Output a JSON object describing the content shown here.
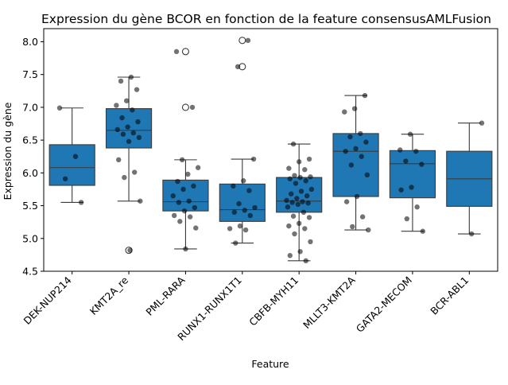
{
  "chart_data": {
    "type": "box",
    "title": "Expression du gène BCOR en fonction de la feature consensusAMLFusion",
    "xlabel": "Feature",
    "ylabel": "Expression du gène",
    "ylim": [
      4.5,
      8.2
    ],
    "yticks": [
      "4.5",
      "5.0",
      "5.5",
      "6.0",
      "6.5",
      "7.0",
      "7.5",
      "8.0"
    ],
    "grid": false,
    "colors": {
      "box": "#1f77b4",
      "edge": "#3b3b3b",
      "point": "#000000"
    },
    "categories": [
      "DEK-NUP214",
      "KMT2A_re",
      "PML-RARA",
      "RUNX1-RUNX1T1",
      "CBFB-MYH11",
      "MLLT3-KMT2A",
      "GATA2-MECOM",
      "BCR-ABL1"
    ],
    "boxes": [
      {
        "category": "DEK-NUP214",
        "whislo": 5.55,
        "q1": 5.81,
        "med": 6.08,
        "q3": 6.43,
        "whishi": 6.99,
        "fliers": []
      },
      {
        "category": "KMT2A_re",
        "whislo": 5.57,
        "q1": 6.38,
        "med": 6.65,
        "q3": 6.98,
        "whishi": 7.46,
        "fliers": [
          4.82
        ]
      },
      {
        "category": "PML-RARA",
        "whislo": 4.84,
        "q1": 5.42,
        "med": 5.56,
        "q3": 5.89,
        "whishi": 6.2,
        "fliers": [
          7.0,
          7.85
        ]
      },
      {
        "category": "RUNX1-RUNX1T1",
        "whislo": 4.93,
        "q1": 5.26,
        "med": 5.44,
        "q3": 5.83,
        "whishi": 6.21,
        "fliers": [
          7.62,
          8.02
        ]
      },
      {
        "category": "CBFB-MYH11",
        "whislo": 4.66,
        "q1": 5.4,
        "med": 5.57,
        "q3": 5.93,
        "whishi": 6.44,
        "fliers": []
      },
      {
        "category": "MLLT3-KMT2A",
        "whislo": 5.13,
        "q1": 5.64,
        "med": 6.33,
        "q3": 6.6,
        "whishi": 7.18,
        "fliers": []
      },
      {
        "category": "GATA2-MECOM",
        "whislo": 5.11,
        "q1": 5.62,
        "med": 6.14,
        "q3": 6.34,
        "whishi": 6.59,
        "fliers": []
      },
      {
        "category": "BCR-ABL1",
        "whislo": 5.07,
        "q1": 5.49,
        "med": 5.91,
        "q3": 6.33,
        "whishi": 6.76,
        "fliers": []
      }
    ],
    "points": [
      {
        "category": "DEK-NUP214",
        "values": [
          6.99,
          6.25,
          5.91,
          5.55
        ]
      },
      {
        "category": "KMT2A_re",
        "values": [
          7.46,
          7.4,
          7.27,
          7.1,
          7.03,
          6.96,
          6.84,
          6.78,
          6.7,
          6.66,
          6.61,
          6.59,
          6.54,
          6.48,
          6.2,
          6.01,
          5.93,
          5.57,
          4.82
        ]
      },
      {
        "category": "PML-RARA",
        "values": [
          7.85,
          7.0,
          6.2,
          6.08,
          5.98,
          5.87,
          5.8,
          5.75,
          5.65,
          5.57,
          5.55,
          5.47,
          5.42,
          5.35,
          5.33,
          5.26,
          5.16,
          4.84
        ]
      },
      {
        "category": "RUNX1-RUNX1T1",
        "values": [
          8.02,
          7.62,
          6.21,
          5.88,
          5.8,
          5.73,
          5.53,
          5.47,
          5.43,
          5.4,
          5.35,
          5.19,
          5.15,
          5.13,
          4.93
        ]
      },
      {
        "category": "CBFB-MYH11",
        "values": [
          6.44,
          6.21,
          6.17,
          6.07,
          6.05,
          5.96,
          5.94,
          5.93,
          5.91,
          5.88,
          5.84,
          5.75,
          5.72,
          5.68,
          5.65,
          5.61,
          5.58,
          5.56,
          5.55,
          5.54,
          5.52,
          5.48,
          5.4,
          5.34,
          5.32,
          5.23,
          5.19,
          5.15,
          5.07,
          4.95,
          4.8,
          4.74,
          4.66
        ]
      },
      {
        "category": "MLLT3-KMT2A",
        "values": [
          7.18,
          6.98,
          6.93,
          6.6,
          6.55,
          6.47,
          6.37,
          6.33,
          6.25,
          6.12,
          5.97,
          5.64,
          5.56,
          5.33,
          5.18,
          5.13
        ]
      },
      {
        "category": "GATA2-MECOM",
        "values": [
          6.59,
          6.35,
          6.33,
          6.18,
          6.13,
          5.78,
          5.74,
          5.48,
          5.3,
          5.11
        ]
      },
      {
        "category": "BCR-ABL1",
        "values": [
          6.76,
          5.07
        ]
      }
    ]
  }
}
